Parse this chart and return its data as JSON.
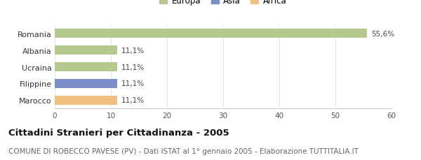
{
  "categories": [
    "Romania",
    "Albania",
    "Ucraina",
    "Filippine",
    "Marocco"
  ],
  "values": [
    55.6,
    11.1,
    11.1,
    11.1,
    11.1
  ],
  "labels": [
    "55,6%",
    "11,1%",
    "11,1%",
    "11,1%",
    "11,1%"
  ],
  "colors": [
    "#b5c98e",
    "#b5c98e",
    "#b5c98e",
    "#7b8ec8",
    "#f0c080"
  ],
  "legend_entries": [
    {
      "label": "Europa",
      "color": "#b5c98e"
    },
    {
      "label": "Asia",
      "color": "#7b8ec8"
    },
    {
      "label": "Africa",
      "color": "#f0c080"
    }
  ],
  "xlim": [
    0,
    60
  ],
  "xticks": [
    0,
    10,
    20,
    30,
    40,
    50,
    60
  ],
  "title": "Cittadini Stranieri per Cittadinanza - 2005",
  "subtitle": "COMUNE DI ROBECCO PAVESE (PV) - Dati ISTAT al 1° gennaio 2005 - Elaborazione TUTTITALIA.IT",
  "title_fontsize": 9.5,
  "subtitle_fontsize": 7.5,
  "background_color": "#ffffff"
}
